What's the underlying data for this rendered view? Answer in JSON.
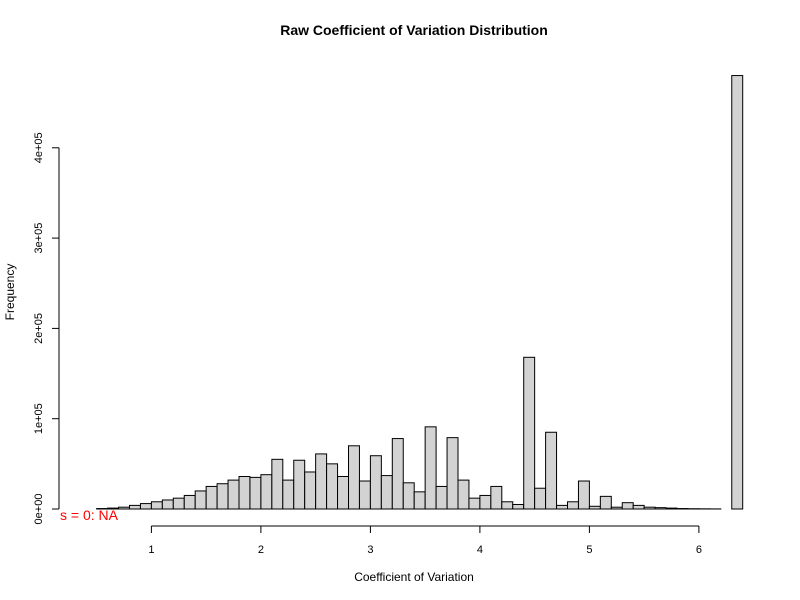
{
  "chart_data": {
    "type": "bar",
    "title": "Raw Coefficient of Variation Distribution",
    "xlabel": "Coefficient of Variation",
    "ylabel": "Frequency",
    "bin_width": 0.1,
    "x_start": 0.2,
    "counts": [
      0,
      0,
      0,
      500,
      1000,
      2000,
      4000,
      6000,
      8000,
      10000,
      12000,
      15000,
      20000,
      25000,
      28000,
      32000,
      36000,
      35000,
      38000,
      55000,
      32000,
      54000,
      41000,
      61000,
      50000,
      36000,
      70000,
      31000,
      59000,
      37000,
      78000,
      29000,
      19000,
      91000,
      25000,
      79000,
      32000,
      12000,
      15000,
      25000,
      8000,
      5000,
      168000,
      23000,
      85000,
      4000,
      8000,
      31000,
      3000,
      14000,
      2000,
      7000,
      4000,
      2000,
      1500,
      1000,
      500,
      300,
      200,
      100,
      0,
      480000
    ],
    "xlim": [
      0.2,
      6.4
    ],
    "ylim": [
      0,
      480000
    ],
    "x_ticks": [
      1,
      2,
      3,
      4,
      5,
      6
    ],
    "x_tick_labels": [
      "1",
      "2",
      "3",
      "4",
      "5",
      "6"
    ],
    "y_ticks": [
      0,
      100000,
      200000,
      300000,
      400000
    ],
    "y_tick_labels": [
      "0e+00",
      "1e+05",
      "2e+05",
      "3e+05",
      "4e+05"
    ],
    "annotation": "s = 0: NA",
    "bar_fill": "#d3d3d3",
    "annotation_color": "#ff0000",
    "grid": false,
    "legend": false
  }
}
